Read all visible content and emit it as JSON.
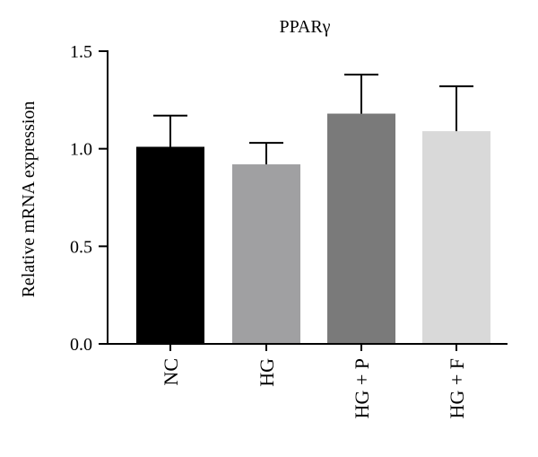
{
  "chart_data": {
    "type": "bar",
    "title": "PPARγ",
    "xlabel": "",
    "ylabel": "Relative mRNA expression",
    "categories": [
      "NC",
      "HG",
      "HG + P",
      "HG + F"
    ],
    "values": [
      1.01,
      0.92,
      1.18,
      1.09
    ],
    "error_upper": [
      0.16,
      0.11,
      0.2,
      0.23
    ],
    "colors": [
      "#000000",
      "#a0a0a2",
      "#7a7a7a",
      "#d9d9d9"
    ],
    "ylim": [
      0,
      1.5
    ],
    "yticks": [
      "0.0",
      "0.5",
      "1.0",
      "1.5"
    ],
    "ytick_values": [
      0,
      0.5,
      1.0,
      1.5
    ],
    "grid": false,
    "legend": "none"
  }
}
